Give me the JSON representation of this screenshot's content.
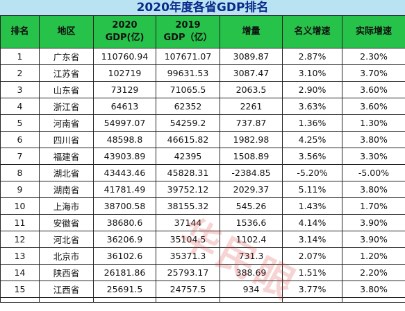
{
  "title": "2020年度各省GDP排名",
  "headers": {
    "rank": "排名",
    "region": "地区",
    "gdp2020_l1": "2020",
    "gdp2020_l2": "GDP(亿)",
    "gdp2019_l1": "2019",
    "gdp2019_l2": "GDP（亿）",
    "increase": "增量",
    "nominal": "名义增速",
    "real": "实际增速"
  },
  "watermark": "华民眼",
  "chart_data": {
    "type": "table",
    "title": "2020年度各省GDP排名",
    "columns": [
      "排名",
      "地区",
      "2020 GDP(亿)",
      "2019 GDP（亿）",
      "增量",
      "名义增速",
      "实际增速"
    ],
    "rows": [
      [
        "1",
        "广东省",
        "110760.94",
        "107671.07",
        "3089.87",
        "2.87%",
        "2.30%"
      ],
      [
        "2",
        "江苏省",
        "102719",
        "99631.53",
        "3087.47",
        "3.10%",
        "3.70%"
      ],
      [
        "3",
        "山东省",
        "73129",
        "71065.5",
        "2063.5",
        "2.90%",
        "3.60%"
      ],
      [
        "4",
        "浙江省",
        "64613",
        "62352",
        "2261",
        "3.63%",
        "3.60%"
      ],
      [
        "5",
        "河南省",
        "54997.07",
        "54259.2",
        "737.87",
        "1.36%",
        "1.30%"
      ],
      [
        "6",
        "四川省",
        "48598.8",
        "46615.82",
        "1982.98",
        "4.25%",
        "3.80%"
      ],
      [
        "7",
        "福建省",
        "43903.89",
        "42395",
        "1508.89",
        "3.56%",
        "3.30%"
      ],
      [
        "8",
        "湖北省",
        "43443.46",
        "45828.31",
        "-2384.85",
        "-5.20%",
        "-5.00%"
      ],
      [
        "9",
        "湖南省",
        "41781.49",
        "39752.12",
        "2029.37",
        "5.11%",
        "3.80%"
      ],
      [
        "10",
        "上海市",
        "38700.58",
        "38155.32",
        "545.26",
        "1.43%",
        "1.70%"
      ],
      [
        "11",
        "安徽省",
        "38680.6",
        "37144",
        "1536.6",
        "4.14%",
        "3.90%"
      ],
      [
        "12",
        "河北省",
        "36206.9",
        "35104.5",
        "1102.4",
        "3.14%",
        "3.90%"
      ],
      [
        "13",
        "北京市",
        "36102.6",
        "35371.3",
        "731.3",
        "2.07%",
        "1.20%"
      ],
      [
        "14",
        "陕西省",
        "26181.86",
        "25793.17",
        "388.69",
        "1.51%",
        "2.20%"
      ],
      [
        "15",
        "江西省",
        "25691.5",
        "24757.5",
        "934",
        "3.77%",
        "3.80%"
      ]
    ]
  }
}
